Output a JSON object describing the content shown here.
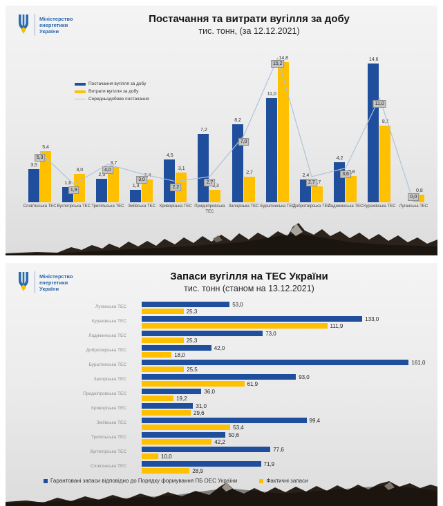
{
  "logo": {
    "lines": [
      "Міністерство",
      "енергетики",
      "України"
    ]
  },
  "colors": {
    "supply_blue": "#1f4e9c",
    "expense_yellow": "#ffc000",
    "avg_line": "#aec3da",
    "line_label_bg": "#c6c6c6",
    "logo_blue": "#2a66ad"
  },
  "chart_data": [
    {
      "id": "daily_supply_expense",
      "type": "bar",
      "title": "Постачання та витрати вугілля за добу",
      "subtitle": "тис. тонн, (за 12.12.2021)",
      "legend_position": "top-left",
      "grid": false,
      "ylim": [
        0,
        15.5
      ],
      "categories": [
        "Слов'янська ТЕС",
        "Вуглегірська ТЕС",
        "Трипільська ТЕС",
        "Зміївська ТЕС",
        "Криворізька ТЕС",
        "Придніпровська ТЕС",
        "Запорізька ТЕС",
        "Бурштинська ТЕС",
        "Добротвірська ТЕС",
        "Ладижинська ТЕС",
        "Курахівська ТЕС",
        "Луганська ТЕС"
      ],
      "series": [
        {
          "name": "Постачання вугілля за добу",
          "render": "bar",
          "color": "#1f4e9c",
          "values": [
            3.5,
            1.6,
            2.5,
            1.3,
            4.5,
            7.2,
            8.2,
            11.0,
            2.4,
            4.2,
            14.6,
            0.0
          ],
          "labels": [
            "3,5",
            "1,6",
            "2,5",
            "1,3",
            "4,5",
            "7,2",
            "8,2",
            "11,0",
            "2,4",
            "4,2",
            "14,6",
            ""
          ]
        },
        {
          "name": "Витрати вугілля за добу",
          "render": "bar",
          "color": "#ffc000",
          "values": [
            5.4,
            3.0,
            3.7,
            2.4,
            3.1,
            1.3,
            2.7,
            14.8,
            1.7,
            2.8,
            8.1,
            0.8
          ],
          "labels": [
            "5,4",
            "3,0",
            "3,7",
            "2,4",
            "3,1",
            "1,3",
            "2,7",
            "14,8",
            "1,7",
            "2,8",
            "8,1",
            "0,8"
          ]
        },
        {
          "name": "Середньодобове постачання",
          "render": "line",
          "color": "#aec3da",
          "values": [
            5.3,
            1.9,
            4.0,
            3.0,
            2.2,
            2.7,
            7.0,
            15.2,
            2.7,
            3.6,
            11.0,
            0.0
          ],
          "labels": [
            "5,3",
            "1,9",
            "4,0",
            "3,0",
            "2,2",
            "2,7",
            "7,0",
            "15,2",
            "2,7",
            "3,6",
            "11,0",
            "0,0"
          ]
        }
      ]
    },
    {
      "id": "coal_stocks",
      "type": "bar",
      "orientation": "horizontal",
      "title": "Запаси вугілля на ТЕС України",
      "subtitle": "тис. тонн (станом на 13.12.2021)",
      "legend_position": "bottom",
      "grid": false,
      "xlim": [
        0,
        170
      ],
      "categories": [
        "Луганська ТЕС",
        "Курахівська ТЕС",
        "Ладижинська ТЕС",
        "Добротвірська ТЕС",
        "Бурштинська ТЕС",
        "Запорізька ТЕС",
        "Придніпровська ТЕС",
        "Криворізька ТЕС",
        "Зміївська ТЕС",
        "Трипільська ТЕС",
        "Вуглегірська ТЕС",
        "Слов'янська ТЕС"
      ],
      "series": [
        {
          "name": "Гарантовані запаси відповідно до Порядку формування ПБ ОЕС України",
          "color": "#1f4e9c",
          "values": [
            53.0,
            133.0,
            73.0,
            42.0,
            161.0,
            93.0,
            36.0,
            31.0,
            99.4,
            50.6,
            77.6,
            71.9
          ],
          "labels": [
            "53,0",
            "133,0",
            "73,0",
            "42,0",
            "161,0",
            "93,0",
            "36,0",
            "31,0",
            "99,4",
            "50,6",
            "77,6",
            "71,9"
          ]
        },
        {
          "name": "Фактичні запаси",
          "color": "#ffc000",
          "values": [
            25.3,
            111.9,
            25.3,
            18.0,
            25.5,
            61.9,
            19.2,
            29.6,
            53.4,
            42.2,
            10.0,
            28.9
          ],
          "labels": [
            "25,3",
            "111,9",
            "25,3",
            "18,0",
            "25,5",
            "61,9",
            "19,2",
            "29,6",
            "53,4",
            "42,2",
            "10,0",
            "28,9"
          ]
        }
      ]
    }
  ]
}
